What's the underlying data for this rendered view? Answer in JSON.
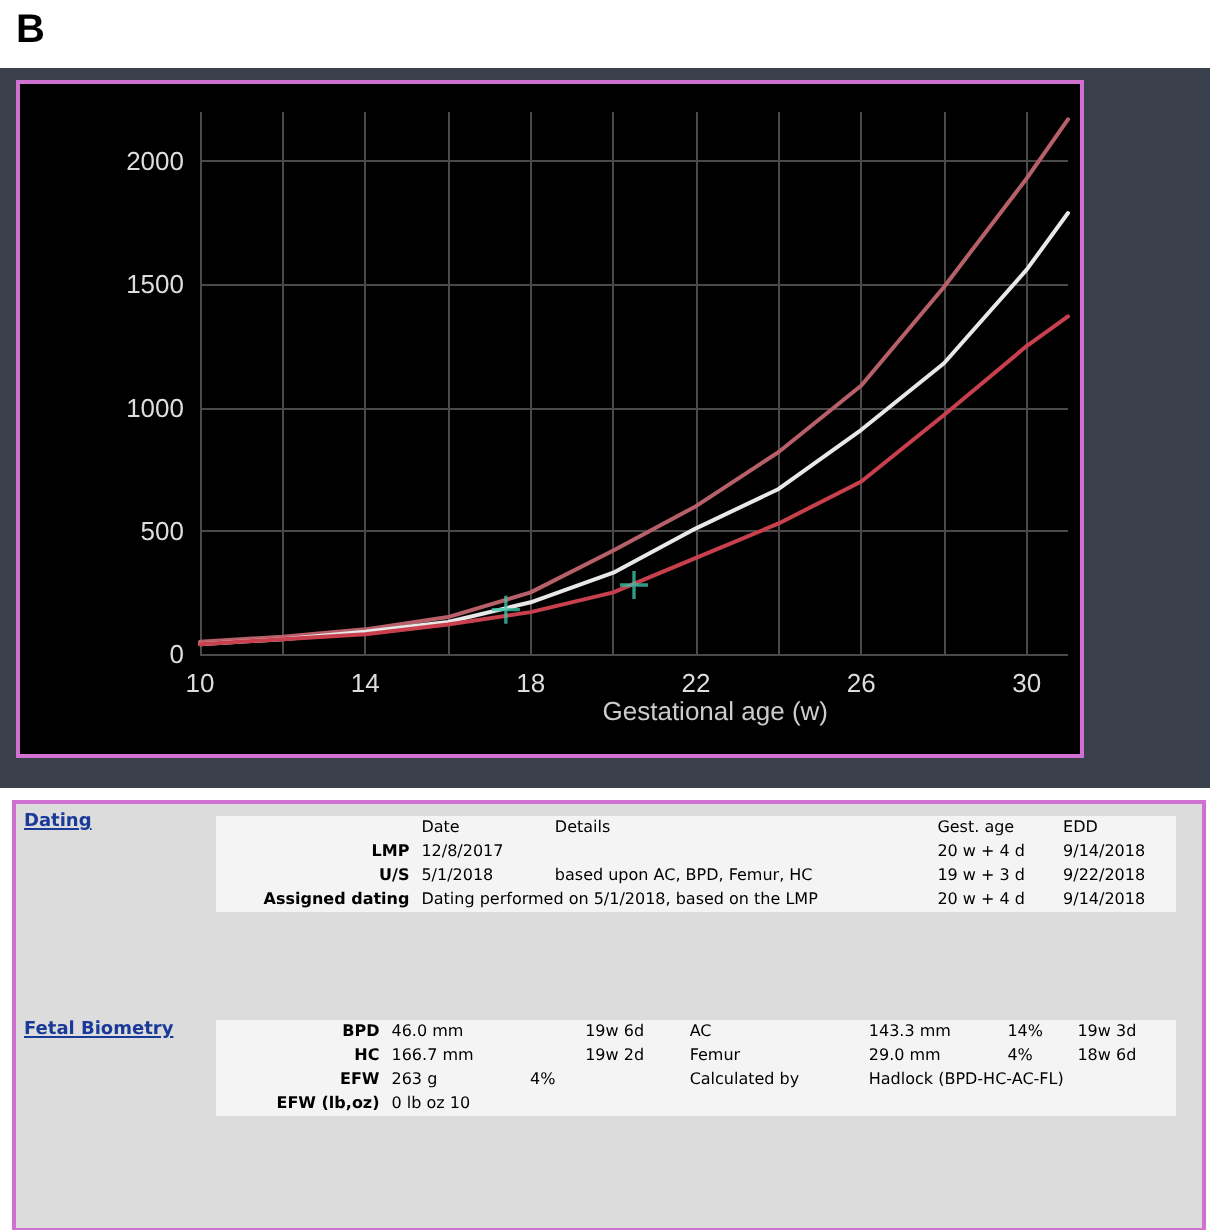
{
  "chart_data": {
    "type": "line",
    "xlabel": "Gestational age (w)",
    "xlim": [
      10,
      31
    ],
    "xticks": [
      10,
      {
        "value": 12,
        "label": null
      },
      14,
      {
        "value": 16,
        "label": null
      },
      18,
      {
        "value": 20,
        "label": null
      },
      22,
      {
        "value": 24,
        "label": null
      },
      26,
      {
        "value": 28,
        "label": null
      },
      30
    ],
    "ylim": [
      0,
      2200
    ],
    "yticks": [
      0,
      500,
      1000,
      1500,
      2000
    ],
    "grid": true,
    "marker": "none",
    "line_style": "solid",
    "series": [
      {
        "color": "#b8606a",
        "x": [
          10,
          12,
          14,
          16,
          18,
          20,
          22,
          24,
          26,
          28,
          30,
          31
        ],
        "values": [
          50,
          70,
          100,
          150,
          250,
          420,
          600,
          820,
          1090,
          1490,
          1930,
          2170
        ]
      },
      {
        "color": "#e8e8e8",
        "x": [
          10,
          12,
          14,
          16,
          18,
          20,
          22,
          24,
          26,
          28,
          30,
          31
        ],
        "values": [
          40,
          60,
          90,
          130,
          210,
          330,
          510,
          670,
          910,
          1180,
          1560,
          1790
        ]
      },
      {
        "color": "#c8404e",
        "x": [
          10,
          12,
          14,
          16,
          18,
          20,
          22,
          24,
          26,
          28,
          30,
          31
        ],
        "values": [
          40,
          60,
          80,
          120,
          170,
          250,
          390,
          530,
          700,
          970,
          1250,
          1370
        ]
      },
      {
        "type": "scatter",
        "marker": "cross",
        "color": "#40c0a8",
        "x": [
          17.4,
          20.5
        ],
        "values": [
          180,
          280
        ]
      }
    ],
    "annotations": [
      "B",
      "Dating",
      "Date",
      "Details",
      "Gest. age",
      "EDD",
      "LMP",
      "12/8/2017",
      "20 w + 4 d",
      "9/14/2018",
      "U/S",
      "5/1/2018",
      "based upon AC, BPD, Femur, HC",
      "19 w + 3 d",
      "9/22/2018",
      "Assigned dating",
      "Dating performed on 5/1/2018, based on the LMP",
      "20 w + 4 d",
      "9/14/2018",
      "Fetal Biometry",
      "BPD",
      "46.0 mm",
      "19w 6d",
      "AC",
      "143.3 mm",
      "14%",
      "19w 3d",
      "HC",
      "166.7 mm",
      "19w 2d",
      "Femur",
      "29.0 mm",
      "4%",
      "18w 6d",
      "EFW",
      "263 g",
      "4%",
      "Calculated by",
      "Hadlock (BPD-HC-AC-FL)",
      "EFW (lb,oz)",
      "0 lb oz 10"
    ]
  }
}
